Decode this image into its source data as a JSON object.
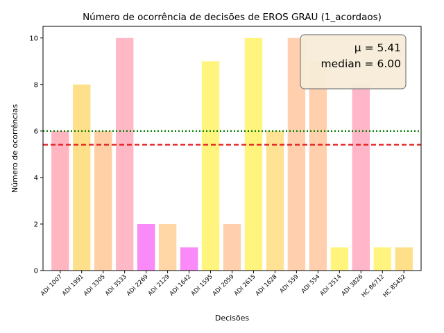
{
  "chart_data": {
    "type": "bar",
    "title": "Número de ocorrência de decisões de EROS GRAU (1_acordaos)",
    "xlabel": "Decisões",
    "ylabel": "Número de ocorrências",
    "ylim": [
      0,
      10.5
    ],
    "yticks": [
      0,
      2,
      4,
      6,
      8,
      10
    ],
    "categories": [
      "ADI 1007",
      "ADI 1991",
      "ADI 3305",
      "ADI 3533",
      "ADI 2269",
      "ADI 2129",
      "ADI 1642",
      "ADI 1595",
      "ADI 2059",
      "ADI 2615",
      "ADI 1628",
      "ADI 559",
      "ADI 554",
      "ADI 2514",
      "ADI 3826",
      "HC 86712",
      "HC 85452"
    ],
    "values": [
      6,
      8,
      6,
      10,
      2,
      2,
      1,
      9,
      2,
      10,
      6,
      10,
      9,
      1,
      8,
      1,
      1
    ],
    "bar_colors": [
      "#ffb6c1",
      "#ffe08a",
      "#ffcfa6",
      "#ffb8c6",
      "#f98af7",
      "#ffd6a5",
      "#f98af7",
      "#fff57e",
      "#ffcfae",
      "#fff57e",
      "#ffe294",
      "#ffcfae",
      "#ffcfae",
      "#fff57e",
      "#ffb6c8",
      "#fff57e",
      "#ffe08a"
    ],
    "mean": 5.41,
    "median": 6.0,
    "mean_line_color": "#e31a1c",
    "median_line_color": "#008000",
    "stats_box": {
      "mean_text": "μ = 5.41",
      "median_text": "median = 6.00",
      "background": "#f7ecd8",
      "border": "#7f7f7f"
    },
    "grid": false
  }
}
